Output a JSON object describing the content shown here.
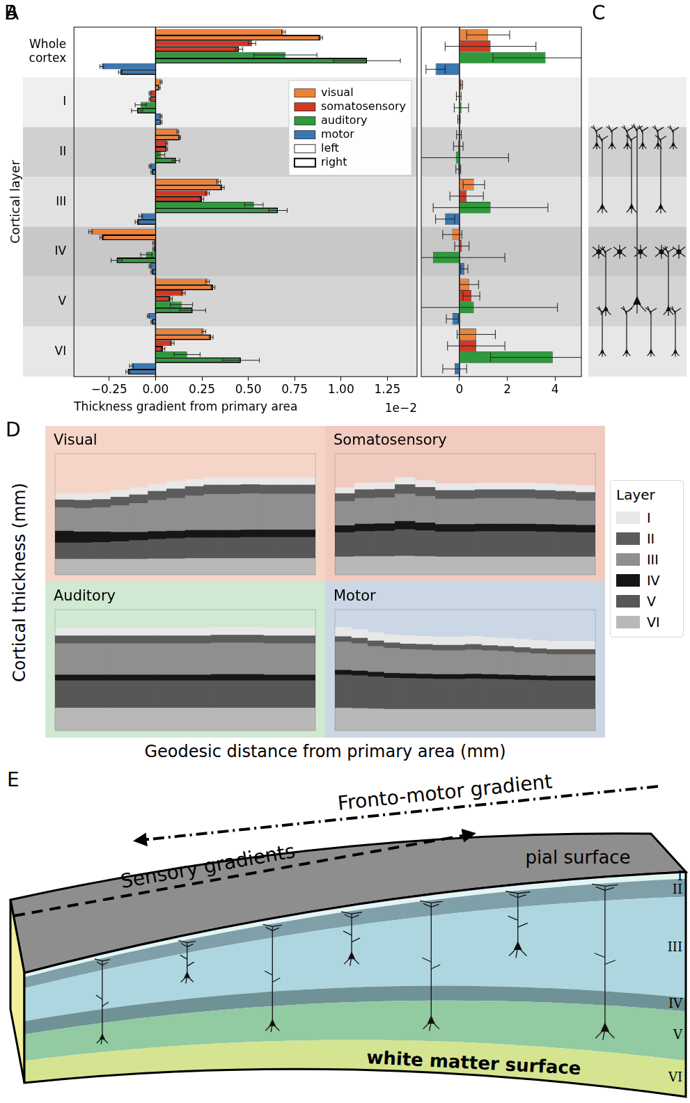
{
  "chart_data": [
    {
      "panel": "A",
      "type": "bar",
      "orientation": "horizontal",
      "categories": [
        "Whole cortex",
        "I",
        "II",
        "III",
        "IV",
        "V",
        "VI"
      ],
      "x_label": "Thickness gradient from primary area",
      "y_label": "Cortical layer",
      "annotations": [
        "1e−2"
      ],
      "xlim": [
        -0.44,
        1.41
      ],
      "xticks": [
        {
          "value": -0.25,
          "label": "−0.25"
        },
        {
          "value": 0,
          "label": "0.00"
        },
        {
          "value": 0.25,
          "label": "0.25"
        },
        {
          "value": 0.5,
          "label": "0.50"
        },
        {
          "value": 0.75,
          "label": "0.75"
        },
        {
          "value": 1,
          "label": "1.00"
        },
        {
          "value": 1.25,
          "label": "1.25"
        }
      ],
      "grid": false,
      "legend": "upper right",
      "hemispheres": [
        "left",
        "right"
      ],
      "series": [
        {
          "name": "visual",
          "color": "#f08138",
          "left": [
            0.69,
            0.03,
            0.12,
            0.34,
            -0.35,
            0.28,
            0.26
          ],
          "right": [
            0.89,
            0.02,
            0.13,
            0.36,
            -0.29,
            0.31,
            0.3
          ],
          "left_error": [
            0.01,
            0.005,
            0.005,
            0.01,
            0.01,
            0.01,
            0.01
          ],
          "right_error": [
            0.01,
            0.005,
            0.005,
            0.01,
            0.01,
            0.01,
            0.01
          ]
        },
        {
          "name": "somatosensory",
          "color": "#cf3a24",
          "left": [
            0.52,
            -0.03,
            0.06,
            0.28,
            -0.01,
            0.15,
            0.09
          ],
          "right": [
            0.45,
            -0.03,
            0.06,
            0.25,
            -0.01,
            0.08,
            0.04
          ],
          "left_error": [
            0.02,
            0.005,
            0.005,
            0.01,
            0.005,
            0.01,
            0.01
          ],
          "right_error": [
            0.02,
            0.005,
            0.005,
            0.01,
            0.005,
            0.01,
            0.01
          ]
        },
        {
          "name": "auditory",
          "color": "#2f9a3b",
          "left": [
            0.7,
            -0.08,
            0.03,
            0.53,
            -0.05,
            0.14,
            0.17
          ],
          "right": [
            1.14,
            -0.1,
            0.11,
            0.66,
            -0.21,
            0.2,
            0.46
          ],
          "left_error": [
            0.17,
            0.03,
            0.02,
            0.05,
            0.03,
            0.06,
            0.07
          ],
          "right_error": [
            0.18,
            0.03,
            0.02,
            0.05,
            0.03,
            0.07,
            0.1
          ]
        },
        {
          "name": "motor",
          "color": "#3b77b0",
          "left": [
            -0.29,
            0.03,
            -0.03,
            -0.08,
            -0.03,
            -0.04,
            -0.13
          ],
          "right": [
            -0.19,
            0.03,
            -0.02,
            -0.1,
            -0.02,
            -0.02,
            -0.15
          ],
          "left_error": [
            0.01,
            0.005,
            0.005,
            0.01,
            0.005,
            0.005,
            0.01
          ],
          "right_error": [
            0.01,
            0.005,
            0.005,
            0.01,
            0.005,
            0.005,
            0.01
          ]
        }
      ]
    },
    {
      "panel": "B",
      "type": "bar",
      "orientation": "horizontal",
      "categories": [
        null,
        null,
        null,
        null,
        null,
        null,
        null
      ],
      "tick_labels": "x",
      "grid": false,
      "xlim": [
        -1.6,
        5.1
      ],
      "xticks": [
        0,
        2,
        4
      ],
      "series": [
        {
          "name": "visual",
          "color": "#f08138",
          "values": [
            1.2,
            0.08,
            -0.02,
            0.6,
            -0.3,
            0.4,
            0.7
          ],
          "errors": [
            0.9,
            0.05,
            0.1,
            0.45,
            0.4,
            0.4,
            0.8
          ]
        },
        {
          "name": "somatosensory",
          "color": "#cf3a24",
          "values": [
            1.3,
            -0.03,
            -0.05,
            0.3,
            0.1,
            0.5,
            0.7
          ],
          "errors": [
            1.9,
            0.1,
            0.2,
            0.7,
            0.3,
            0.35,
            1.2
          ]
        },
        {
          "name": "auditory",
          "color": "#2f9a3b",
          "values": [
            3.6,
            0.08,
            -0.15,
            1.3,
            -1.1,
            0.6,
            3.9
          ],
          "errors": [
            2.2,
            0.3,
            2.2,
            2.4,
            3.0,
            3.5,
            2.6
          ]
        },
        {
          "name": "motor",
          "color": "#3b77b0",
          "values": [
            -1.0,
            -0.02,
            -0.05,
            -0.6,
            0.2,
            -0.3,
            -0.2
          ],
          "errors": [
            0.4,
            0.05,
            0.1,
            0.4,
            0.15,
            0.25,
            0.5
          ]
        }
      ]
    },
    {
      "type": "bar",
      "stacked": true,
      "title": "Visual",
      "tick_labels": false,
      "categories": [
        null,
        null,
        null,
        null,
        null,
        null,
        null,
        null,
        null,
        null,
        null,
        null,
        null,
        null
      ],
      "ylim": [
        0,
        3.1
      ],
      "yticks": [],
      "series": [
        {
          "name": "I",
          "color": "#e8e8e8",
          "values": [
            0.16,
            0.17,
            0.17,
            0.18,
            0.18,
            0.18,
            0.19,
            0.19,
            0.19,
            0.19,
            0.18,
            0.18,
            0.18,
            0.18
          ]
        },
        {
          "name": "II",
          "color": "#5c5c5c",
          "values": [
            0.2,
            0.21,
            0.21,
            0.22,
            0.22,
            0.23,
            0.24,
            0.24,
            0.24,
            0.24,
            0.23,
            0.23,
            0.23,
            0.23
          ]
        },
        {
          "name": "III",
          "color": "#8f8f8f",
          "values": [
            0.6,
            0.6,
            0.62,
            0.68,
            0.74,
            0.8,
            0.84,
            0.88,
            0.92,
            0.92,
            0.93,
            0.92,
            0.92,
            0.92
          ]
        },
        {
          "name": "IV",
          "color": "#161616",
          "values": [
            0.3,
            0.28,
            0.27,
            0.24,
            0.21,
            0.2,
            0.19,
            0.19,
            0.19,
            0.19,
            0.19,
            0.19,
            0.19,
            0.19
          ]
        },
        {
          "name": "V",
          "color": "#575757",
          "values": [
            0.42,
            0.42,
            0.43,
            0.45,
            0.48,
            0.5,
            0.52,
            0.53,
            0.53,
            0.53,
            0.54,
            0.54,
            0.54,
            0.54
          ]
        },
        {
          "name": "VI",
          "color": "#b8b8b8",
          "values": [
            0.4,
            0.4,
            0.4,
            0.4,
            0.4,
            0.41,
            0.41,
            0.42,
            0.42,
            0.42,
            0.42,
            0.42,
            0.42,
            0.42
          ]
        }
      ]
    },
    {
      "type": "bar",
      "stacked": true,
      "title": "Somatosensory",
      "tick_labels": false,
      "categories": [
        null,
        null,
        null,
        null,
        null,
        null,
        null,
        null,
        null,
        null,
        null,
        null,
        null
      ],
      "ylim": [
        0,
        3.1
      ],
      "yticks": [],
      "series": [
        {
          "name": "I",
          "color": "#e8e8e8",
          "values": [
            0.15,
            0.17,
            0.17,
            0.18,
            0.17,
            0.17,
            0.17,
            0.17,
            0.17,
            0.17,
            0.17,
            0.17,
            0.17
          ]
        },
        {
          "name": "II",
          "color": "#5c5c5c",
          "values": [
            0.2,
            0.22,
            0.22,
            0.24,
            0.23,
            0.22,
            0.22,
            0.22,
            0.22,
            0.22,
            0.22,
            0.22,
            0.22
          ]
        },
        {
          "name": "III",
          "color": "#8f8f8f",
          "values": [
            0.62,
            0.66,
            0.66,
            0.7,
            0.68,
            0.65,
            0.65,
            0.66,
            0.66,
            0.66,
            0.65,
            0.64,
            0.62
          ]
        },
        {
          "name": "IV",
          "color": "#161616",
          "values": [
            0.18,
            0.19,
            0.19,
            0.21,
            0.2,
            0.19,
            0.19,
            0.19,
            0.19,
            0.19,
            0.19,
            0.19,
            0.19
          ]
        },
        {
          "name": "V",
          "color": "#575757",
          "values": [
            0.62,
            0.64,
            0.65,
            0.68,
            0.66,
            0.64,
            0.64,
            0.65,
            0.65,
            0.65,
            0.64,
            0.63,
            0.62
          ]
        },
        {
          "name": "VI",
          "color": "#b8b8b8",
          "values": [
            0.46,
            0.47,
            0.47,
            0.48,
            0.47,
            0.46,
            0.46,
            0.46,
            0.46,
            0.46,
            0.46,
            0.46,
            0.46
          ]
        }
      ]
    },
    {
      "type": "bar",
      "stacked": true,
      "title": "Auditory",
      "tick_labels": false,
      "categories": [
        null,
        null,
        null,
        null,
        null
      ],
      "ylim": [
        0,
        3.1
      ],
      "yticks": [],
      "series": [
        {
          "name": "I",
          "color": "#e8e8e8",
          "values": [
            0.2,
            0.2,
            0.2,
            0.2,
            0.2
          ]
        },
        {
          "name": "II",
          "color": "#5c5c5c",
          "values": [
            0.2,
            0.2,
            0.2,
            0.2,
            0.2
          ]
        },
        {
          "name": "III",
          "color": "#8f8f8f",
          "values": [
            0.8,
            0.8,
            0.8,
            0.81,
            0.8
          ]
        },
        {
          "name": "IV",
          "color": "#161616",
          "values": [
            0.15,
            0.15,
            0.15,
            0.16,
            0.15
          ]
        },
        {
          "name": "V",
          "color": "#575757",
          "values": [
            0.7,
            0.7,
            0.7,
            0.7,
            0.7
          ]
        },
        {
          "name": "VI",
          "color": "#b8b8b8",
          "values": [
            0.58,
            0.58,
            0.58,
            0.58,
            0.58
          ]
        }
      ]
    },
    {
      "type": "bar",
      "stacked": true,
      "title": "Motor",
      "tick_labels": false,
      "categories": [
        null,
        null,
        null,
        null,
        null,
        null,
        null,
        null,
        null,
        null,
        null,
        null,
        null,
        null,
        null,
        null
      ],
      "ylim": [
        0,
        3.1
      ],
      "yticks": [],
      "series": [
        {
          "name": "I",
          "color": "#e8e8e8",
          "values": [
            0.24,
            0.22,
            0.21,
            0.21,
            0.21,
            0.21,
            0.21,
            0.21,
            0.21,
            0.21,
            0.21,
            0.21,
            0.21,
            0.21,
            0.21,
            0.21
          ]
        },
        {
          "name": "II",
          "color": "#5c5c5c",
          "values": [
            0.14,
            0.14,
            0.14,
            0.14,
            0.14,
            0.14,
            0.14,
            0.14,
            0.14,
            0.13,
            0.13,
            0.13,
            0.13,
            0.13,
            0.13,
            0.13
          ]
        },
        {
          "name": "III",
          "color": "#8f8f8f",
          "values": [
            0.72,
            0.7,
            0.66,
            0.64,
            0.62,
            0.62,
            0.61,
            0.61,
            0.62,
            0.61,
            0.6,
            0.58,
            0.56,
            0.55,
            0.55,
            0.55
          ]
        },
        {
          "name": "IV",
          "color": "#161616",
          "values": [
            0.12,
            0.12,
            0.12,
            0.12,
            0.12,
            0.12,
            0.12,
            0.12,
            0.12,
            0.12,
            0.12,
            0.12,
            0.12,
            0.12,
            0.12,
            0.12
          ]
        },
        {
          "name": "V",
          "color": "#575757",
          "values": [
            0.85,
            0.84,
            0.82,
            0.8,
            0.79,
            0.78,
            0.77,
            0.77,
            0.78,
            0.77,
            0.76,
            0.75,
            0.74,
            0.73,
            0.73,
            0.73
          ]
        },
        {
          "name": "VI",
          "color": "#b8b8b8",
          "values": [
            0.58,
            0.57,
            0.56,
            0.55,
            0.55,
            0.55,
            0.55,
            0.55,
            0.55,
            0.55,
            0.55,
            0.55,
            0.55,
            0.55,
            0.55,
            0.55
          ]
        }
      ]
    }
  ],
  "panel_C": {
    "panel": "C"
  },
  "panel_D": {
    "panel": "D",
    "y_label": "Cortical thickness (mm)",
    "x_label": "Geodesic distance from primary area (mm)",
    "legend_title": "Layer",
    "legend": "right"
  },
  "panel_E": {
    "panel": "E",
    "arrows": {
      "fronto_motor": "Fronto-motor gradient",
      "sensory": "Sensory gradients"
    },
    "surfaces": {
      "pial": "pial surface",
      "white_matter": "white matter surface"
    },
    "layers": [
      "I",
      "II",
      "III",
      "IV",
      "V",
      "VI"
    ]
  }
}
